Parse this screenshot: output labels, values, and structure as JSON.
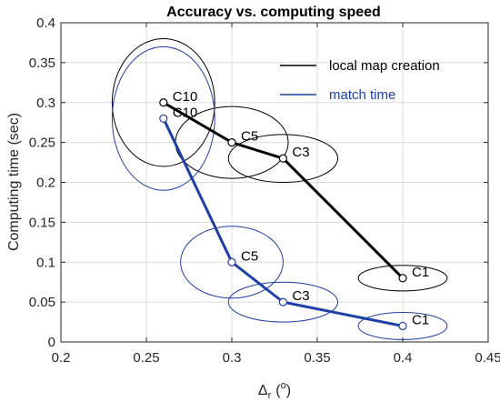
{
  "chart_data": {
    "type": "line",
    "title": "Accuracy vs. computing speed",
    "xlabel": "Δ",
    "xlabel_sub": "r",
    "xlabel_paren_open": "(",
    "xlabel_sup": "o",
    "xlabel_paren_close": ")",
    "ylabel": "Computing time (sec)",
    "xlim": [
      0.2,
      0.45
    ],
    "ylim": [
      0,
      0.4
    ],
    "xticks": [
      0.2,
      0.25,
      0.3,
      0.35,
      0.4,
      0.45
    ],
    "xtick_labels": [
      "0.2",
      "0.25",
      "0.3",
      "0.35",
      "0.4",
      "0.45"
    ],
    "yticks": [
      0,
      0.05,
      0.1,
      0.15,
      0.2,
      0.25,
      0.3,
      0.35,
      0.4
    ],
    "ytick_labels": [
      "0",
      "0.05",
      "0.1",
      "0.15",
      "0.2",
      "0.25",
      "0.3",
      "0.35",
      "0.4"
    ],
    "grid": true,
    "legend_position": "top-right",
    "series": [
      {
        "name": "local map creation",
        "color": "#000000",
        "points": [
          {
            "label": "C10",
            "x": 0.26,
            "y": 0.3,
            "rx": 0.03,
            "ry": 0.08
          },
          {
            "label": "C5",
            "x": 0.3,
            "y": 0.25,
            "rx": 0.033,
            "ry": 0.045
          },
          {
            "label": "C3",
            "x": 0.33,
            "y": 0.23,
            "rx": 0.032,
            "ry": 0.03
          },
          {
            "label": "C1",
            "x": 0.4,
            "y": 0.08,
            "rx": 0.026,
            "ry": 0.016
          }
        ]
      },
      {
        "name": "match time",
        "color": "#1f3fa8",
        "points": [
          {
            "label": "C10",
            "x": 0.26,
            "y": 0.28,
            "rx": 0.03,
            "ry": 0.09
          },
          {
            "label": "C5",
            "x": 0.3,
            "y": 0.1,
            "rx": 0.03,
            "ry": 0.045
          },
          {
            "label": "C3",
            "x": 0.33,
            "y": 0.05,
            "rx": 0.032,
            "ry": 0.025
          },
          {
            "label": "C1",
            "x": 0.4,
            "y": 0.02,
            "rx": 0.026,
            "ry": 0.017
          }
        ]
      }
    ]
  }
}
